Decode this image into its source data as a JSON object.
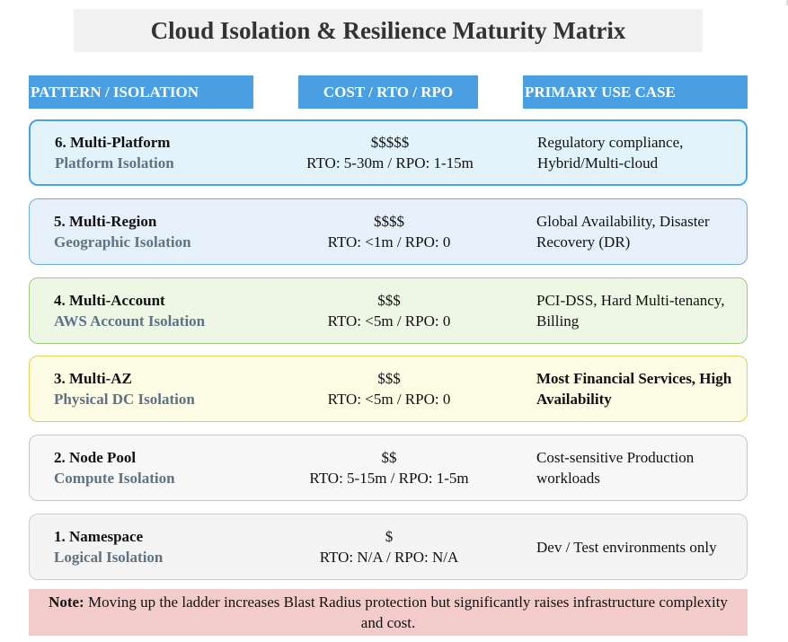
{
  "title": "Cloud Isolation & Resilience Maturity Matrix",
  "headers": {
    "pattern": "PATTERN / ISOLATION",
    "cost": "COST / RTO / RPO",
    "use_case": "PRIMARY USE CASE"
  },
  "rows": [
    {
      "name": "6. Multi-Platform",
      "isolation": "Platform Isolation",
      "cost": "$$$$$",
      "rto_rpo": "RTO: 5-30m / RPO: 1-15m",
      "use_case": "Regulatory compliance, Hybrid/Multi-cloud",
      "color": "#e3f3fc"
    },
    {
      "name": "5. Multi-Region",
      "isolation": "Geographic Isolation",
      "cost": "$$$$",
      "rto_rpo": "RTO: <1m / RPO: 0",
      "use_case": "Global Availability, Disaster Recovery (DR)",
      "color": "#e6f0fb"
    },
    {
      "name": "4. Multi-Account",
      "isolation": "AWS Account Isolation",
      "cost": "$$$",
      "rto_rpo": "RTO: <5m / RPO: 0",
      "use_case": "PCI-DSS, Hard Multi-tenancy, Billing",
      "color": "#eef6e6"
    },
    {
      "name": "3. Multi-AZ",
      "isolation": "Physical DC Isolation",
      "cost": "$$$",
      "rto_rpo": "RTO: <5m / RPO: 0",
      "use_case": "Most Financial Services, High Availability",
      "color": "#fdfce4"
    },
    {
      "name": "2. Node Pool",
      "isolation": "Compute Isolation",
      "cost": "$$",
      "rto_rpo": "RTO: 5-15m / RPO: 1-5m",
      "use_case": "Cost-sensitive Production workloads",
      "color": "#f7f7f7"
    },
    {
      "name": "1. Namespace",
      "isolation": "Logical Isolation",
      "cost": "$",
      "rto_rpo": "RTO: N/A / RPO: N/A",
      "use_case": "Dev / Test environments only",
      "color": "#f4f4f4"
    }
  ],
  "note": {
    "label": "Note:",
    "text": " Moving up the ladder increases Blast Radius protection but significantly raises infrastructure complexity and cost."
  }
}
